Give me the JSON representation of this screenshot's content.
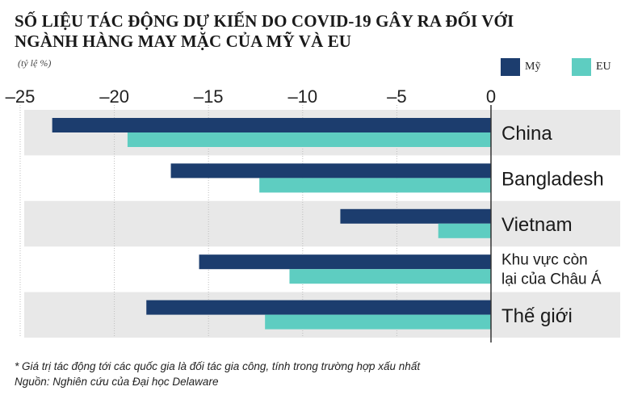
{
  "title_line1": "SỐ LIỆU TÁC ĐỘNG DỰ KIẾN DO COVID-19 GÂY RA ĐỐI VỚI",
  "title_line2": "NGÀNH HÀNG MAY MẶC CỦA MỸ VÀ EU",
  "unit": "(tỷ lệ %)",
  "footnote": "* Giá trị tác động tới các quốc gia là đối tác gia công, tính trong trường hợp xấu nhất",
  "source": "Nguồn: Nghiên cứu của Đại học Delaware",
  "colors": {
    "us": "#1c3d6e",
    "eu": "#5ecdc1",
    "band": "#e8e8e8"
  },
  "chart_data": {
    "type": "bar",
    "orientation": "horizontal",
    "categories": [
      "China",
      "Bangladesh",
      "Vietnam",
      "Khu vực còn lại của Châu Á",
      "Thế giới"
    ],
    "series": [
      {
        "name": "Mỹ",
        "values": [
          -23.3,
          -17.0,
          -8.0,
          -15.5,
          -18.3
        ]
      },
      {
        "name": "EU",
        "values": [
          -19.3,
          -12.3,
          -2.8,
          -10.7,
          -12.0
        ]
      }
    ],
    "xlim": [
      -25,
      0
    ],
    "xticks": [
      -25,
      -20,
      -15,
      -10,
      -5,
      0
    ],
    "xtick_labels": [
      "–25",
      "–20",
      "–15",
      "–10",
      "–5",
      "0"
    ],
    "axis_position": "top",
    "legend": "top-right",
    "grid": true
  }
}
